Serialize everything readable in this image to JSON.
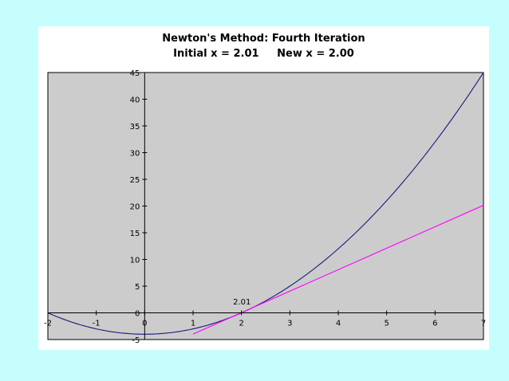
{
  "chart_data": {
    "type": "line",
    "title": "Newton's Method: Fourth Iteration",
    "subtitle": "Initial x = 2.01     New x = 2.00",
    "xlim": [
      -2,
      7
    ],
    "ylim": [
      -5,
      45
    ],
    "xticks": [
      "-2",
      "-1",
      "0",
      "1",
      "2",
      "3",
      "4",
      "5",
      "6",
      "7"
    ],
    "yticks": [
      "-5",
      "0",
      "5",
      "10",
      "15",
      "20",
      "25",
      "30",
      "35",
      "40",
      "45"
    ],
    "annotation": {
      "text": "2.01",
      "x": 2.01,
      "y": 0.04
    },
    "colors": {
      "plot_bg": "#cccccc",
      "curve": "#1a1a80",
      "tangent": "#ff00ff"
    },
    "series": [
      {
        "color": "#1a1a80",
        "x": [
          -2,
          -1.5,
          -1,
          -0.5,
          0,
          0.5,
          1,
          1.5,
          2,
          2.5,
          3,
          3.5,
          4,
          4.5,
          5,
          5.5,
          6,
          6.5,
          7
        ],
        "y": [
          0,
          -1.75,
          -3,
          -3.75,
          -4,
          -3.75,
          -3,
          -1.75,
          0,
          2.25,
          5,
          8.25,
          12,
          16.25,
          21,
          26.25,
          32,
          38.25,
          45
        ]
      },
      {
        "color": "#ff00ff",
        "x": [
          1,
          7
        ],
        "y": [
          -3.98,
          20.14
        ]
      }
    ]
  }
}
